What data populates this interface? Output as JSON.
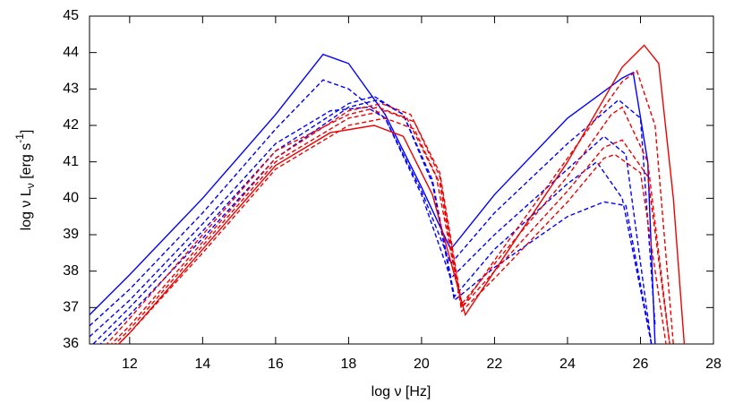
{
  "chart_data": {
    "type": "line",
    "x_label": "log ν [Hz]",
    "y_label_parts": [
      "log ν L",
      "ν",
      " [erg s",
      "-1",
      "]"
    ],
    "xlim": [
      10.9,
      28
    ],
    "ylim": [
      36,
      45
    ],
    "xticks": [
      12,
      14,
      16,
      18,
      20,
      22,
      24,
      26,
      28
    ],
    "yticks": [
      36,
      37,
      38,
      39,
      40,
      41,
      42,
      43,
      44,
      45
    ],
    "series": [
      {
        "color": "#0000ff",
        "dash": false,
        "x": [
          10.9,
          12,
          14,
          16,
          17.3,
          18,
          19,
          20,
          20.8,
          22,
          24,
          25.5,
          25.8,
          26.2,
          26.4
        ],
        "values": [
          36.8,
          37.9,
          40,
          42.3,
          43.95,
          43.7,
          42.3,
          40.3,
          38.6,
          40.1,
          42.2,
          43.3,
          43.45,
          41,
          36
        ]
      },
      {
        "color": "#0000ff",
        "dash": true,
        "x": [
          10.9,
          12,
          14,
          16,
          17.3,
          18,
          19,
          20,
          20.8,
          22,
          24,
          25.4,
          26,
          26.4
        ],
        "values": [
          36.5,
          37.5,
          39.6,
          41.9,
          43.25,
          43,
          42.2,
          40.2,
          38.2,
          39.6,
          41.5,
          42.7,
          42.2,
          36.5
        ]
      },
      {
        "color": "#0000ff",
        "dash": true,
        "x": [
          10.9,
          12,
          14,
          16,
          17.5,
          18.5,
          19,
          20,
          20.8,
          22,
          24,
          25,
          25.6,
          26.3
        ],
        "values": [
          36.2,
          37.2,
          39.3,
          41.5,
          42.4,
          42.5,
          42.2,
          40.1,
          37.8,
          39,
          40.8,
          41.7,
          41.2,
          36
        ]
      },
      {
        "color": "#0000ff",
        "dash": true,
        "x": [
          11,
          12,
          14,
          16,
          18,
          18.7,
          19.5,
          20.3,
          20.9,
          22,
          24,
          24.8,
          25.5,
          26.3
        ],
        "values": [
          36,
          37,
          39.1,
          41.3,
          42.6,
          42.8,
          42.3,
          40.5,
          37.3,
          38.6,
          40.4,
          41,
          40,
          36
        ]
      },
      {
        "color": "#0000ff",
        "dash": true,
        "x": [
          11,
          12,
          14,
          16,
          18,
          18.8,
          19.5,
          20.3,
          20.9,
          22,
          24,
          25,
          25.6,
          26.3
        ],
        "values": [
          35.8,
          36.8,
          38.9,
          41.1,
          42.5,
          42.7,
          42.3,
          40.4,
          37.2,
          38.1,
          39.5,
          39.9,
          39.8,
          36
        ]
      },
      {
        "color": "#ee0000",
        "dash": false,
        "x": [
          11.6,
          12,
          14,
          16,
          17.5,
          18.7,
          19.5,
          20.3,
          21.2,
          22,
          24,
          25.5,
          26.1,
          26.5,
          26.9,
          27.2
        ],
        "values": [
          35.9,
          36.3,
          38.6,
          40.9,
          41.8,
          42,
          41.7,
          40.1,
          36.8,
          38,
          41,
          43.6,
          44.2,
          43.7,
          40,
          36
        ]
      },
      {
        "color": "#ee0000",
        "dash": true,
        "x": [
          11.2,
          12,
          14,
          16,
          18,
          18.8,
          19.6,
          20.4,
          21.1,
          22,
          24,
          25.5,
          25.9,
          26.4,
          26.9
        ],
        "values": [
          35.8,
          36.7,
          39,
          41.3,
          42.3,
          42.5,
          42.2,
          40.6,
          37,
          38.3,
          41.1,
          43.2,
          43.5,
          42,
          36
        ]
      },
      {
        "color": "#ee0000",
        "dash": true,
        "x": [
          11.3,
          12,
          14,
          16,
          18,
          18.9,
          19.7,
          20.5,
          21.1,
          22,
          24,
          25.2,
          25.5,
          26.2,
          26.8
        ],
        "values": [
          35.8,
          36.5,
          38.8,
          41.1,
          42.4,
          42.6,
          42.3,
          40.7,
          37.1,
          38.2,
          40.6,
          42.3,
          42.5,
          41,
          36
        ]
      },
      {
        "color": "#ee0000",
        "dash": true,
        "x": [
          11.4,
          12,
          14,
          16,
          18,
          19,
          19.8,
          20.5,
          21.1,
          22,
          24,
          25,
          25.5,
          26.2,
          26.8
        ],
        "values": [
          35.8,
          36.4,
          38.7,
          41,
          42.2,
          42.4,
          42.1,
          40.6,
          37,
          38,
          40.2,
          41.4,
          41.6,
          40.6,
          36
        ]
      },
      {
        "color": "#ee0000",
        "dash": true,
        "x": [
          11.5,
          12,
          14,
          16,
          18,
          19,
          19.8,
          20.5,
          21.1,
          22,
          24,
          25,
          25.3,
          26,
          26.7
        ],
        "values": [
          35.8,
          36.3,
          38.5,
          40.8,
          42,
          42.2,
          41.9,
          40.4,
          36.9,
          37.8,
          39.9,
          41.1,
          41.2,
          40.7,
          36
        ]
      }
    ]
  }
}
